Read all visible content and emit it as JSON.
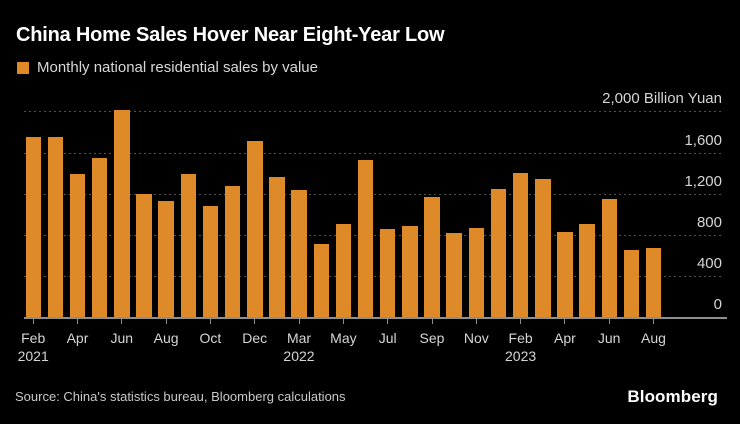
{
  "header": {
    "title": "China Home Sales Hover Near Eight-Year Low",
    "legend_label": "Monthly national residential sales by value"
  },
  "footer": {
    "source": "Source: China's statistics bureau, Bloomberg calculations",
    "brand": "Bloomberg"
  },
  "colors": {
    "background": "#000000",
    "bar": "#DE8A28",
    "gridline": "#515151",
    "axis_line": "#8F8F8F",
    "title_text": "#FFFFFF",
    "label_text": "#D6D6D6"
  },
  "chart_data": {
    "type": "bar",
    "title": "China Home Sales Hover Near Eight-Year Low",
    "series_name": "Monthly national residential sales by value",
    "unit": "Billion Yuan",
    "ylabel": "Billion Yuan",
    "xlabel": "",
    "ylim": [
      0,
      2000
    ],
    "grid": "horizontal-dotted",
    "legend_position": "top-left",
    "categories": [
      "Feb 2021",
      "Mar 2021",
      "Apr 2021",
      "May 2021",
      "Jun 2021",
      "Jul 2021",
      "Aug 2021",
      "Sep 2021",
      "Oct 2021",
      "Nov 2021",
      "Dec 2021",
      "Feb 2022",
      "Mar 2022",
      "Apr 2022",
      "May 2022",
      "Jun 2022",
      "Jul 2022",
      "Aug 2022",
      "Sep 2022",
      "Oct 2022",
      "Nov 2022",
      "Dec 2022",
      "Feb 2023",
      "Mar 2023",
      "Apr 2023",
      "May 2023",
      "Jun 2023",
      "Jul 2023",
      "Aug 2023"
    ],
    "values": [
      1750,
      1750,
      1390,
      1550,
      2010,
      1200,
      1130,
      1390,
      1080,
      1270,
      1710,
      1360,
      1240,
      710,
      900,
      1530,
      860,
      890,
      1170,
      820,
      870,
      1250,
      1400,
      1340,
      830,
      900,
      1150,
      650,
      670
    ],
    "y_ticks": [
      2000,
      1600,
      1200,
      800,
      400,
      0
    ],
    "y_tick_labels": [
      "2,000 Billion Yuan",
      "1,600",
      "1,200",
      "800",
      "400",
      "0"
    ],
    "x_tick_labels": [
      {
        "month": "Feb",
        "year": "2021"
      },
      {
        "month": "Apr"
      },
      {
        "month": "Jun"
      },
      {
        "month": "Aug"
      },
      {
        "month": "Oct"
      },
      {
        "month": "Dec"
      },
      {
        "month": "Mar",
        "year": "2022"
      },
      {
        "month": "May"
      },
      {
        "month": "Jul"
      },
      {
        "month": "Sep"
      },
      {
        "month": "Nov"
      },
      {
        "month": "Feb",
        "year": "2023"
      },
      {
        "month": "Apr"
      },
      {
        "month": "Jun"
      },
      {
        "month": "Aug"
      }
    ]
  }
}
